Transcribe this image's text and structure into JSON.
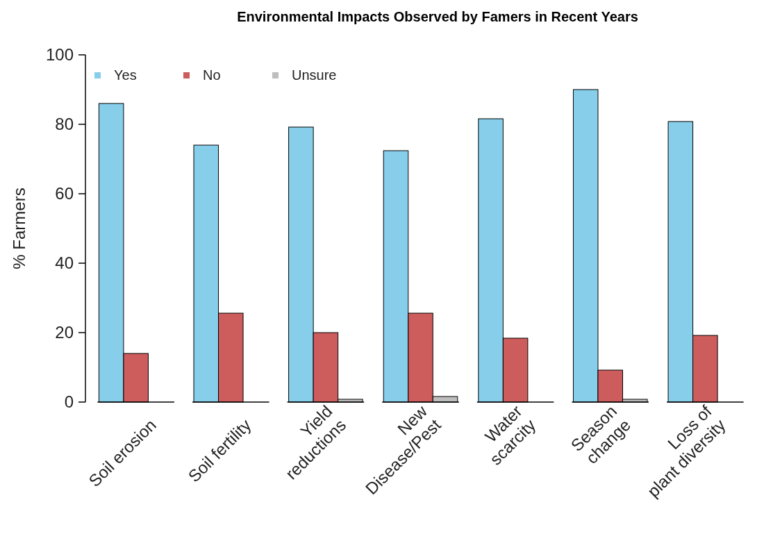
{
  "chart_data": {
    "type": "bar",
    "title": "Environmental Impacts Observed by Famers in Recent Years",
    "ylabel": "% Farmers",
    "categories": [
      "Soil erosion",
      "Soil fertility",
      "Yield\nreductions",
      "New\nDisease/Pest",
      "Water\nscarcity",
      "Season\nchange",
      "Loss of\nplant diversity"
    ],
    "series": [
      {
        "name": "Yes",
        "color": "#87ceeb",
        "values": [
          86,
          74,
          79.2,
          72.4,
          81.6,
          90,
          80.8
        ]
      },
      {
        "name": "No",
        "color": "#cd5c5c",
        "values": [
          14,
          25.6,
          20,
          25.6,
          18.4,
          9.2,
          19.2
        ]
      },
      {
        "name": "Unsure",
        "color": "#bebebe",
        "values": [
          0,
          0,
          0.8,
          1.6,
          0,
          0.8,
          0
        ]
      }
    ],
    "ylim": [
      0,
      100
    ],
    "yticks": [
      0,
      20,
      40,
      60,
      80,
      100
    ],
    "legend": "top left",
    "grid": false
  }
}
